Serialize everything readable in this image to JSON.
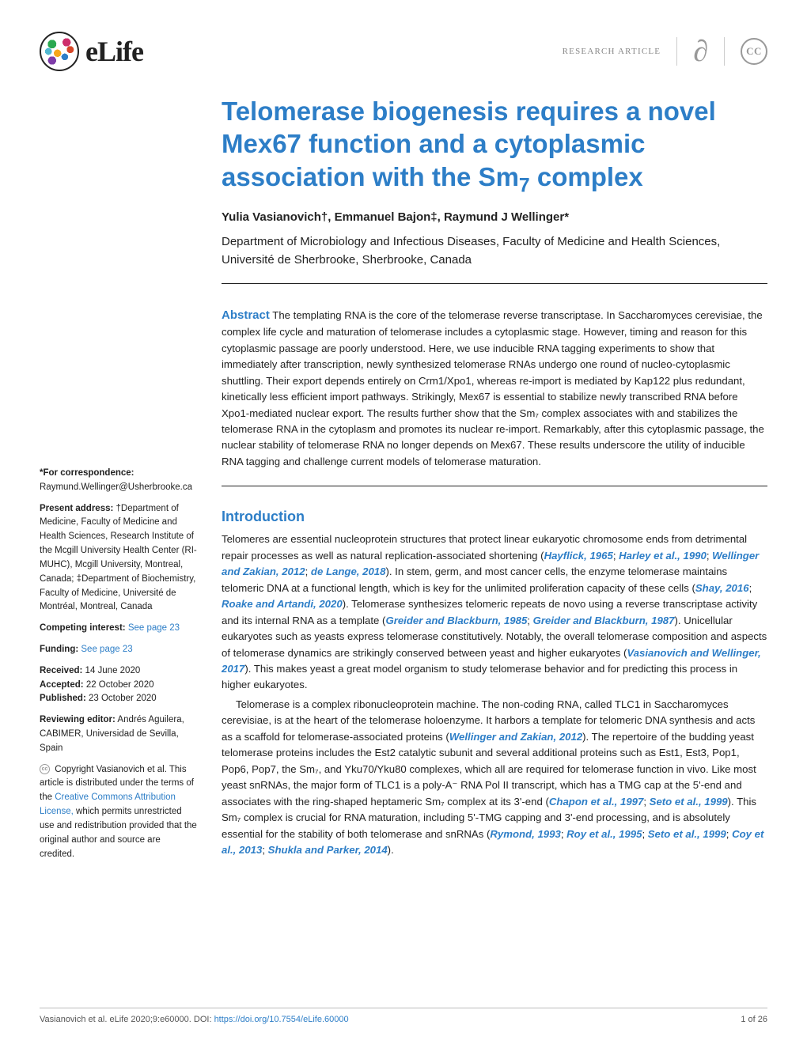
{
  "header": {
    "journal": "eLife",
    "article_type": "RESEARCH ARTICLE",
    "cc_label": "CC"
  },
  "title": "Telomerase biogenesis requires a novel Mex67 function and a cytoplasmic association with the Sm₇ complex",
  "authors": "Yulia Vasianovich†, Emmanuel Bajon‡, Raymund J Wellinger*",
  "affiliation": "Department of Microbiology and Infectious Diseases, Faculty of Medicine and Health Sciences, Université de Sherbrooke, Sherbrooke, Canada",
  "abstract_label": "Abstract",
  "abstract": "The templating RNA is the core of the telomerase reverse transcriptase. In Saccharomyces cerevisiae, the complex life cycle and maturation of telomerase includes a cytoplasmic stage. However, timing and reason for this cytoplasmic passage are poorly understood. Here, we use inducible RNA tagging experiments to show that immediately after transcription, newly synthesized telomerase RNAs undergo one round of nucleo-cytoplasmic shuttling. Their export depends entirely on Crm1/Xpo1, whereas re-import is mediated by Kap122 plus redundant, kinetically less efficient import pathways. Strikingly, Mex67 is essential to stabilize newly transcribed RNA before Xpo1-mediated nuclear export. The results further show that the Sm₇ complex associates with and stabilizes the telomerase RNA in the cytoplasm and promotes its nuclear re-import. Remarkably, after this cytoplasmic passage, the nuclear stability of telomerase RNA no longer depends on Mex67. These results underscore the utility of inducible RNA tagging and challenge current models of telomerase maturation.",
  "sidebar": {
    "corr_label": "*For correspondence:",
    "corr_email": "Raymund.Wellinger@Usherbrooke.ca",
    "addr_label": "Present address:",
    "addr1": "†Department of Medicine, Faculty of Medicine and Health Sciences, Research Institute of the Mcgill University Health Center (RI-MUHC), Mcgill University, Montreal, Canada;",
    "addr2": "‡Department of Biochemistry, Faculty of Medicine, Université de Montréal, Montreal, Canada",
    "ci_label": "Competing interest:",
    "ci_link": "See page 23",
    "fund_label": "Funding:",
    "fund_link": "See page 23",
    "recv_label": "Received:",
    "recv_date": "14 June 2020",
    "acc_label": "Accepted:",
    "acc_date": "22 October 2020",
    "pub_label": "Published:",
    "pub_date": "23 October 2020",
    "rev_label": "Reviewing editor:",
    "rev_name": "Andrés Aguilera, CABIMER, Universidad de Sevilla, Spain",
    "copyright": "Copyright Vasianovich et al. This article is distributed under the terms of the ",
    "cc_link": "Creative Commons Attribution License,",
    "cc_tail": " which permits unrestricted use and redistribution provided that the original author and source are credited."
  },
  "intro_title": "Introduction",
  "intro_p1a": "Telomeres are essential nucleoprotein structures that protect linear eukaryotic chromosome ends from detrimental repair processes as well as natural replication-associated shortening (",
  "intro_c1": "Hayflick, 1965",
  "intro_c2": "Harley et al., 1990",
  "intro_c3": "Wellinger and Zakian, 2012",
  "intro_c4": "de Lange, 2018",
  "intro_p1b": "). In stem, germ, and most cancer cells, the enzyme telomerase maintains telomeric DNA at a functional length, which is key for the unlimited proliferation capacity of these cells (",
  "intro_c5": "Shay, 2016",
  "intro_c6": "Roake and Artandi, 2020",
  "intro_p1c": "). Telomerase synthesizes telomeric repeats de novo using a reverse transcriptase activity and its internal RNA as a template (",
  "intro_c7": "Greider and Blackburn, 1985",
  "intro_c8": "Greider and Blackburn, 1987",
  "intro_p1d": "). Unicellular eukaryotes such as yeasts express telomerase constitutively. Notably, the overall telomerase composition and aspects of telomerase dynamics are strikingly conserved between yeast and higher eukaryotes (",
  "intro_c9": "Vasianovich and Wellinger, 2017",
  "intro_p1e": "). This makes yeast a great model organism to study telomerase behavior and for predicting this process in higher eukaryotes.",
  "intro_p2a": "Telomerase is a complex ribonucleoprotein machine. The non-coding RNA, called TLC1 in Saccharomyces cerevisiae, is at the heart of the telomerase holoenzyme. It harbors a template for telomeric DNA synthesis and acts as a scaffold for telomerase-associated proteins (",
  "intro_c10": "Wellinger and Zakian, 2012",
  "intro_p2b": "). The repertoire of the budding yeast telomerase proteins includes the Est2 catalytic subunit and several additional proteins such as Est1, Est3, Pop1, Pop6, Pop7, the Sm₇, and Yku70/Yku80 complexes, which all are required for telomerase function in vivo. Like most yeast snRNAs, the major form of TLC1 is a poly-A⁻ RNA Pol II transcript, which has a TMG cap at the 5'-end and associates with the ring-shaped heptameric Sm₇ complex at its 3'-end (",
  "intro_c11": "Chapon et al., 1997",
  "intro_c12": "Seto et al., 1999",
  "intro_p2c": "). This Sm₇ complex is crucial for RNA maturation, including 5'-TMG capping and 3'-end processing, and is absolutely essential for the stability of both telomerase and snRNAs (",
  "intro_c13": "Rymond, 1993",
  "intro_c14": "Roy et al., 1995",
  "intro_c15": "Seto et al., 1999",
  "intro_c16": "Coy et al., 2013",
  "intro_c17": "Shukla and Parker, 2014",
  "intro_p2d": ").",
  "footer": {
    "citation": "Vasianovich et al. eLife 2020;9:e60000. ",
    "doi_label": "DOI: ",
    "doi": "https://doi.org/10.7554/eLife.60000",
    "page": "1 of 26"
  }
}
